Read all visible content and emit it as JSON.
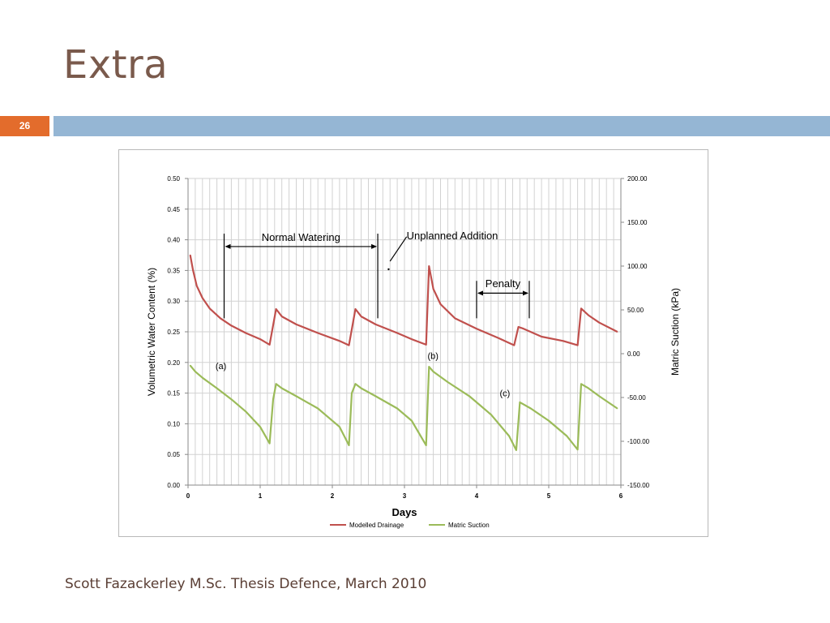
{
  "slide": {
    "title": "Extra",
    "number": "26",
    "footer": "Scott Fazackerley M.Sc. Thesis Defence, March 2010"
  },
  "colors": {
    "title": "#7a5a4c",
    "accent_box": "#e36c2c",
    "accent_bar": "#95b6d4",
    "modelled_drainage": "#c0504d",
    "matric_suction": "#9bbb59"
  },
  "chart_data": {
    "type": "line",
    "xlabel": "Days",
    "ylabel": "Volumetric Water Content (%)",
    "y2label": "Matric Suction (kPa)",
    "xlim": [
      0,
      6
    ],
    "ylim": [
      0,
      0.5
    ],
    "y2lim": [
      -150,
      200
    ],
    "x_ticks": [
      "0",
      "1",
      "2",
      "3",
      "4",
      "5",
      "6"
    ],
    "y_ticks": [
      "0.00",
      "0.05",
      "0.10",
      "0.15",
      "0.20",
      "0.25",
      "0.30",
      "0.35",
      "0.40",
      "0.45",
      "0.50"
    ],
    "y2_ticks": [
      "-150.00",
      "-100.00",
      "-50.00",
      "0.00",
      "50.00",
      "100.00",
      "150.00",
      "200.00"
    ],
    "grid": true,
    "legend": [
      "Modelled Drainage",
      "Matric Suction"
    ],
    "series": [
      {
        "name": "Modelled Drainage",
        "axis": "left",
        "x": [
          0.03,
          0.07,
          0.12,
          0.2,
          0.3,
          0.45,
          0.6,
          0.8,
          1.0,
          1.13,
          1.22,
          1.3,
          1.5,
          1.8,
          2.1,
          2.23,
          2.32,
          2.4,
          2.6,
          2.9,
          3.1,
          3.3,
          3.34,
          3.4,
          3.5,
          3.7,
          4.0,
          4.3,
          4.52,
          4.58,
          4.65,
          4.9,
          5.2,
          5.4,
          5.45,
          5.55,
          5.7,
          5.95
        ],
        "values": [
          0.375,
          0.35,
          0.325,
          0.305,
          0.288,
          0.272,
          0.26,
          0.248,
          0.238,
          0.229,
          0.287,
          0.275,
          0.262,
          0.248,
          0.235,
          0.228,
          0.287,
          0.275,
          0.262,
          0.248,
          0.238,
          0.229,
          0.357,
          0.32,
          0.295,
          0.272,
          0.255,
          0.24,
          0.228,
          0.258,
          0.255,
          0.242,
          0.235,
          0.228,
          0.288,
          0.277,
          0.265,
          0.25
        ]
      },
      {
        "name": "Matric Suction",
        "axis": "left",
        "x": [
          0.03,
          0.1,
          0.2,
          0.4,
          0.6,
          0.8,
          1.0,
          1.13,
          1.18,
          1.22,
          1.3,
          1.5,
          1.8,
          2.1,
          2.23,
          2.27,
          2.32,
          2.4,
          2.6,
          2.9,
          3.1,
          3.3,
          3.34,
          3.4,
          3.6,
          3.9,
          4.2,
          4.45,
          4.55,
          4.6,
          4.75,
          5.0,
          5.25,
          5.4,
          5.45,
          5.55,
          5.7,
          5.95
        ],
        "values": [
          0.195,
          0.185,
          0.175,
          0.158,
          0.14,
          0.12,
          0.095,
          0.068,
          0.14,
          0.165,
          0.158,
          0.145,
          0.125,
          0.095,
          0.065,
          0.15,
          0.165,
          0.158,
          0.145,
          0.125,
          0.105,
          0.065,
          0.193,
          0.185,
          0.168,
          0.145,
          0.115,
          0.08,
          0.057,
          0.135,
          0.125,
          0.105,
          0.08,
          0.058,
          0.165,
          0.158,
          0.145,
          0.125
        ]
      }
    ],
    "annotations": [
      {
        "text": "Normal Watering",
        "x_start": 0.5,
        "x_end": 2.63
      },
      {
        "text": "Unplanned Addition"
      },
      {
        "text": "Penalty",
        "x_start": 4.0,
        "x_end": 4.73
      },
      {
        "text": "(a)"
      },
      {
        "text": "(b)"
      },
      {
        "text": "(c)"
      }
    ]
  }
}
